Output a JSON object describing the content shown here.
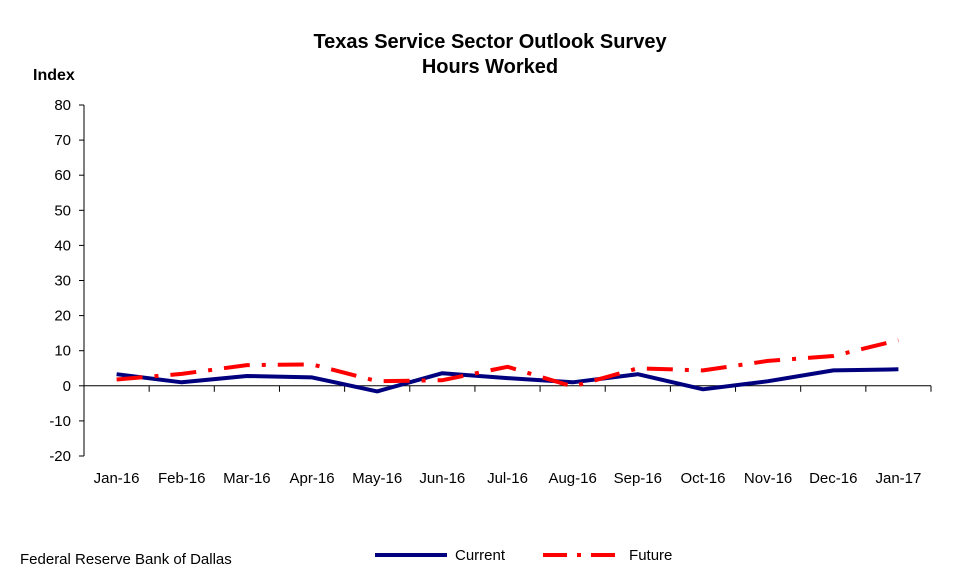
{
  "chart_data": {
    "type": "line",
    "title": "Texas Service Sector Outlook Survey",
    "subtitle": "Hours Worked",
    "ylabel": "Index",
    "xlabel": "",
    "categories": [
      "Jan-16",
      "Feb-16",
      "Mar-16",
      "Apr-16",
      "May-16",
      "Jun-16",
      "Jul-16",
      "Aug-16",
      "Sep-16",
      "Oct-16",
      "Nov-16",
      "Dec-16",
      "Jan-17"
    ],
    "ylim": [
      -20,
      80
    ],
    "yticks": [
      80,
      70,
      60,
      50,
      40,
      30,
      20,
      10,
      0,
      -10,
      -20
    ],
    "grid": false,
    "legend_position": "bottom",
    "series": [
      {
        "name": "Current",
        "color": "#00007f",
        "style": "solid",
        "values": [
          3.3,
          1.0,
          2.8,
          2.4,
          -1.6,
          3.6,
          2.2,
          1.0,
          3.3,
          -1.0,
          1.3,
          4.4,
          4.7
        ]
      },
      {
        "name": "Future",
        "color": "#ff0000",
        "style": "dash-dot",
        "values": [
          1.8,
          3.4,
          5.9,
          6.1,
          1.3,
          1.6,
          5.4,
          -0.2,
          5.0,
          4.4,
          7.1,
          8.5,
          13.0
        ]
      }
    ]
  },
  "footer": {
    "source": "Federal Reserve Bank of Dallas"
  }
}
